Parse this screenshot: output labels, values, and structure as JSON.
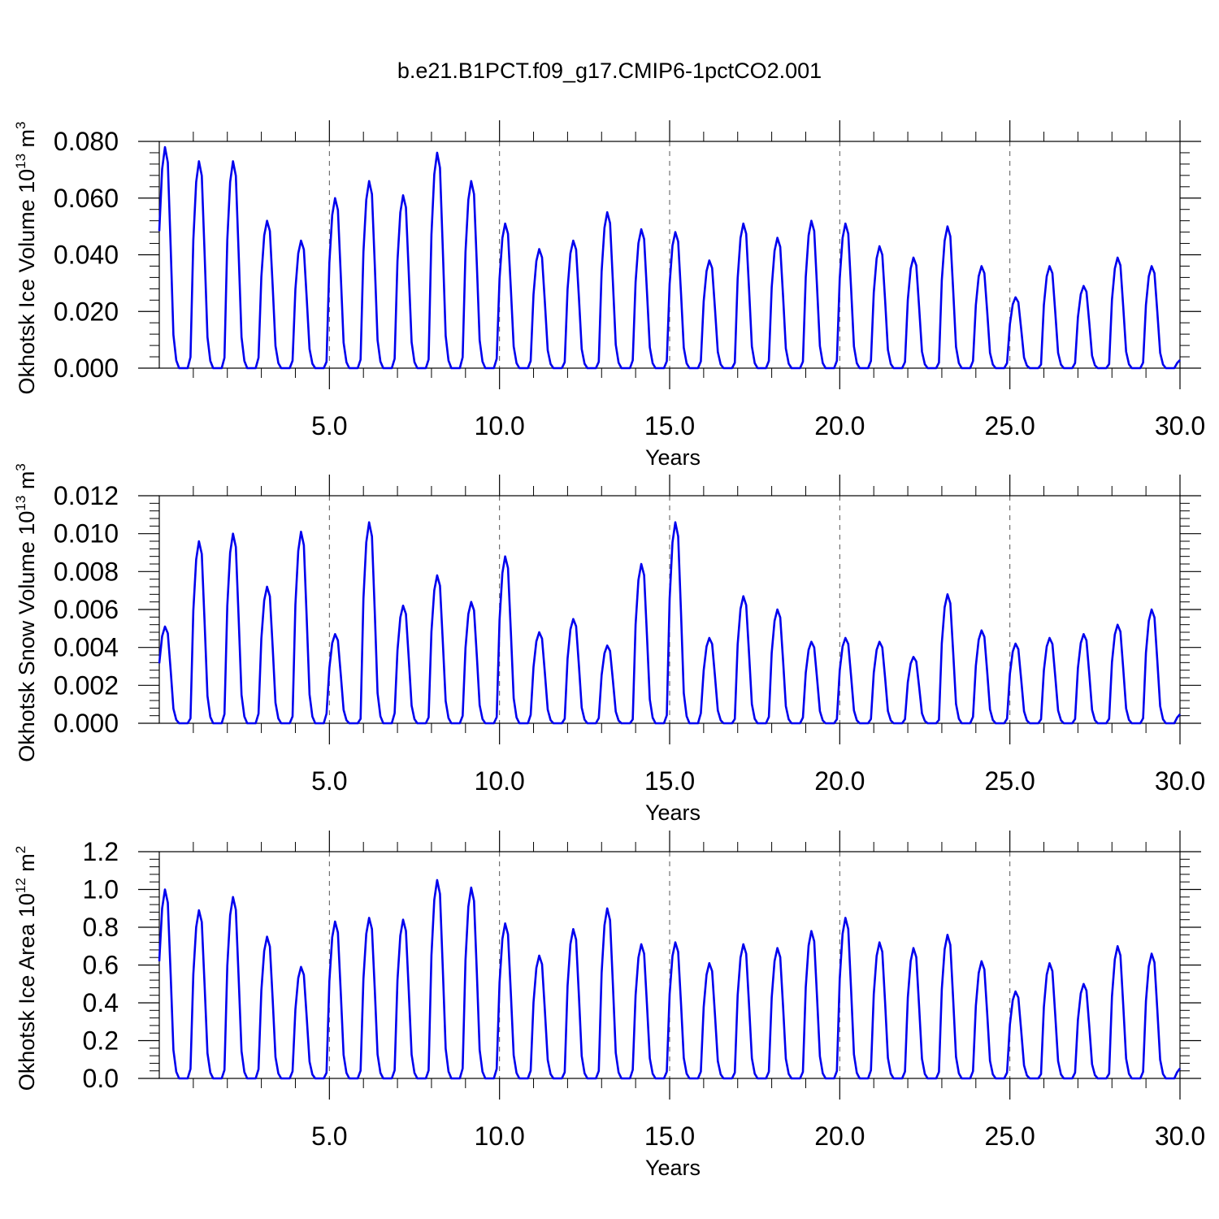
{
  "title": "b.e21.B1PCT.f09_g17.CMIP6-1pctCO2.001",
  "chart_data": [
    {
      "type": "line",
      "id": "ice-volume",
      "ylabel_main": "Okhotsk Ice Volume 10",
      "ylabel_exp": "13",
      "ylabel_unit": " m",
      "ylabel_unit_exp": "3",
      "xlabel": "Years",
      "xlim": [
        0,
        30
      ],
      "ylim": [
        0,
        0.08
      ],
      "xticks": [
        5,
        10,
        15,
        20,
        25,
        30
      ],
      "xtick_labels": [
        "5.0",
        "10.0",
        "15.0",
        "20.0",
        "25.0",
        "30.0"
      ],
      "yticks": [
        0,
        0.02,
        0.04,
        0.06,
        0.08
      ],
      "ytick_labels": [
        "0.000",
        "0.020",
        "0.040",
        "0.060",
        "0.080"
      ],
      "dashed_gridlines_x": [
        5,
        10,
        15,
        20,
        25
      ],
      "line_color": "#0000ee",
      "series": [
        {
          "peaks": [
            0.078,
            0.073,
            0.073,
            0.052,
            0.045,
            0.06,
            0.066,
            0.061,
            0.076,
            0.066,
            0.051,
            0.042,
            0.045,
            0.055,
            0.049,
            0.048,
            0.038,
            0.051,
            0.046,
            0.052,
            0.051,
            0.043,
            0.039,
            0.05,
            0.036,
            0.025,
            0.036,
            0.029,
            0.039,
            0.036
          ]
        }
      ]
    },
    {
      "type": "line",
      "id": "snow-volume",
      "ylabel_main": "Okhotsk Snow Volume 10",
      "ylabel_exp": "13",
      "ylabel_unit": " m",
      "ylabel_unit_exp": "3",
      "xlabel": "Years",
      "xlim": [
        0,
        30
      ],
      "ylim": [
        0,
        0.012
      ],
      "xticks": [
        5,
        10,
        15,
        20,
        25,
        30
      ],
      "xtick_labels": [
        "5.0",
        "10.0",
        "15.0",
        "20.0",
        "25.0",
        "30.0"
      ],
      "yticks": [
        0,
        0.002,
        0.004,
        0.006,
        0.008,
        0.01,
        0.012
      ],
      "ytick_labels": [
        "0.000",
        "0.002",
        "0.004",
        "0.006",
        "0.008",
        "0.010",
        "0.012"
      ],
      "dashed_gridlines_x": [
        5,
        10,
        15,
        20,
        25
      ],
      "line_color": "#0000ee",
      "series": [
        {
          "peaks": [
            0.0051,
            0.0096,
            0.01,
            0.0072,
            0.0101,
            0.0047,
            0.0106,
            0.0062,
            0.0078,
            0.0064,
            0.0088,
            0.0048,
            0.0055,
            0.0041,
            0.0084,
            0.0106,
            0.0045,
            0.0067,
            0.006,
            0.0043,
            0.0045,
            0.0043,
            0.0035,
            0.0068,
            0.0049,
            0.0042,
            0.0045,
            0.0047,
            0.0052,
            0.006
          ]
        }
      ]
    },
    {
      "type": "line",
      "id": "ice-area",
      "ylabel_main": "Okhotsk Ice Area 10",
      "ylabel_exp": "12",
      "ylabel_unit": " m",
      "ylabel_unit_exp": "2",
      "xlabel": "Years",
      "xlim": [
        0,
        30
      ],
      "ylim": [
        0,
        1.2
      ],
      "xticks": [
        5,
        10,
        15,
        20,
        25,
        30
      ],
      "xtick_labels": [
        "5.0",
        "10.0",
        "15.0",
        "20.0",
        "25.0",
        "30.0"
      ],
      "yticks": [
        0,
        0.2,
        0.4,
        0.6,
        0.8,
        1.0,
        1.2
      ],
      "ytick_labels": [
        "0.0",
        "0.2",
        "0.4",
        "0.6",
        "0.8",
        "1.0",
        "1.2"
      ],
      "dashed_gridlines_x": [
        5,
        10,
        15,
        20,
        25
      ],
      "line_color": "#0000ee",
      "series": [
        {
          "peaks": [
            1.0,
            0.89,
            0.96,
            0.75,
            0.59,
            0.83,
            0.85,
            0.84,
            1.05,
            1.01,
            0.82,
            0.65,
            0.79,
            0.9,
            0.71,
            0.72,
            0.61,
            0.71,
            0.69,
            0.78,
            0.85,
            0.72,
            0.69,
            0.76,
            0.62,
            0.46,
            0.61,
            0.5,
            0.7,
            0.66
          ]
        }
      ]
    }
  ]
}
